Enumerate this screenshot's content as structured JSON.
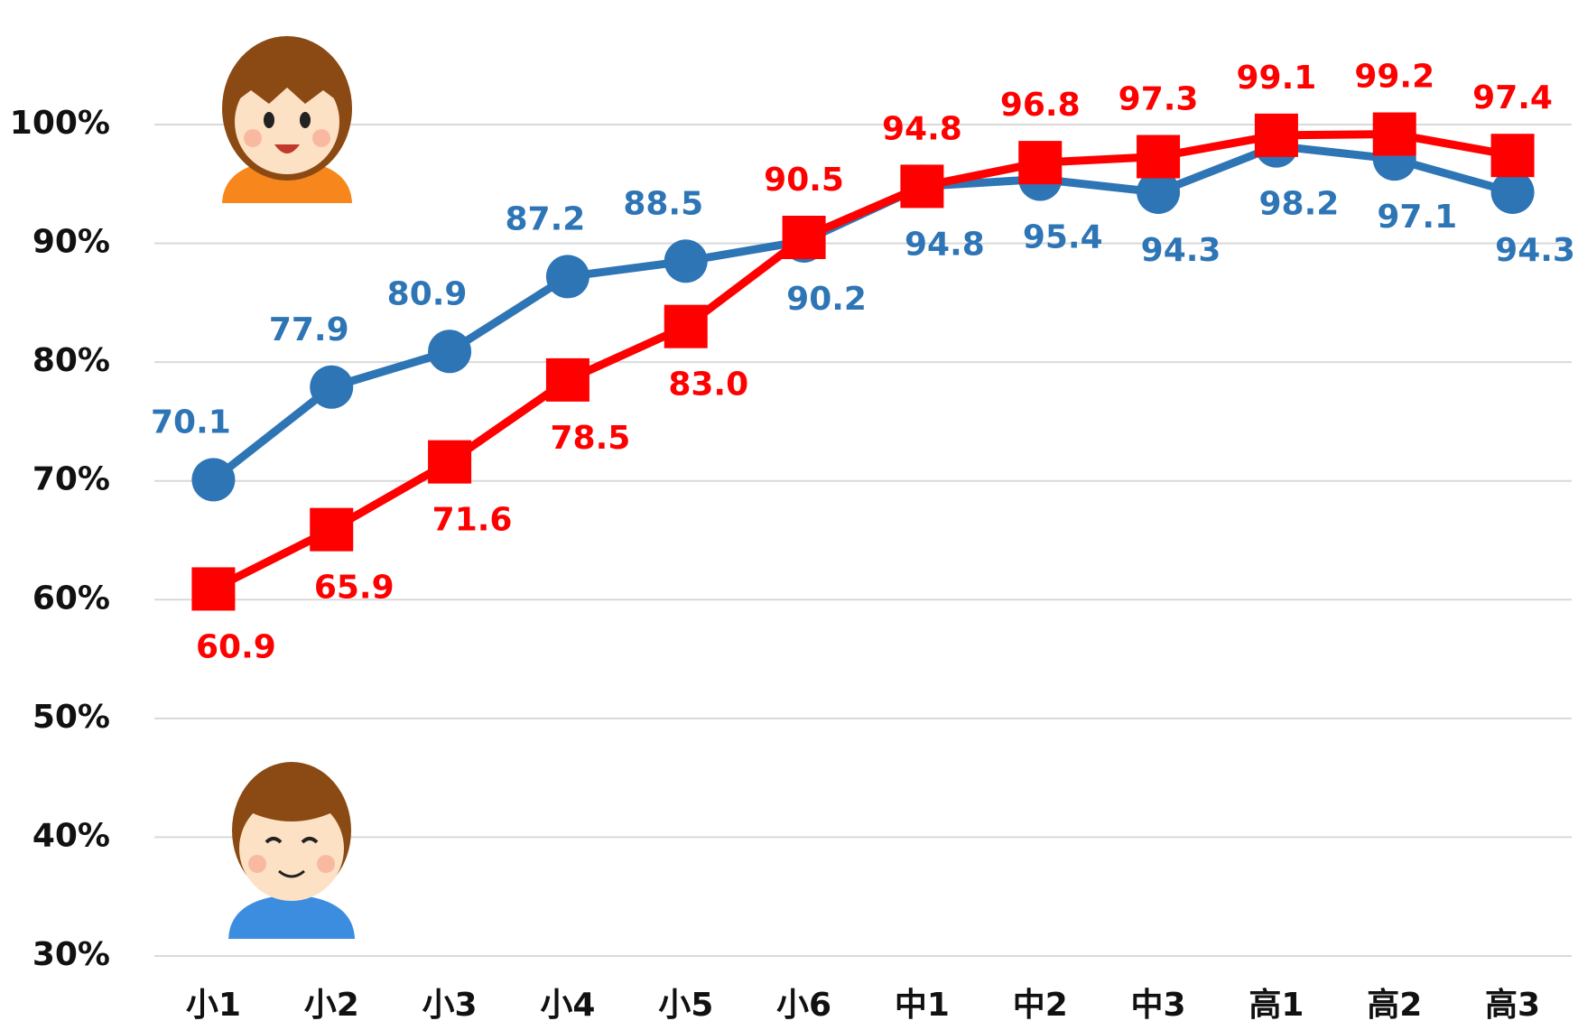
{
  "chart_data": {
    "type": "line",
    "categories": [
      "小1",
      "小2",
      "小3",
      "小4",
      "小5",
      "小6",
      "中1",
      "中2",
      "中3",
      "高1",
      "高2",
      "高3"
    ],
    "series": [
      {
        "color": "#2e75b6",
        "marker": "circle",
        "values": [
          70.1,
          77.9,
          80.9,
          87.2,
          88.5,
          90.2,
          94.8,
          95.4,
          94.3,
          98.2,
          97.1,
          94.3
        ]
      },
      {
        "color": "#ff0000",
        "marker": "square",
        "values": [
          60.9,
          65.9,
          71.6,
          78.5,
          83.0,
          90.5,
          94.8,
          96.8,
          97.3,
          99.1,
          99.2,
          97.4
        ],
        "value_labels": [
          "60.9",
          "65.9",
          "71.6",
          "78.5",
          "83.0",
          "90.5",
          "94.8",
          "96.8",
          "97.3",
          "99.1",
          "99.2",
          "97.4"
        ]
      }
    ],
    "ylim": [
      30,
      100
    ],
    "yticks": [
      {
        "value": 30,
        "label": "30%"
      },
      {
        "value": 40,
        "label": "40%"
      },
      {
        "value": 50,
        "label": "50%"
      },
      {
        "value": 60,
        "label": "60%"
      },
      {
        "value": 70,
        "label": "70%"
      },
      {
        "value": 80,
        "label": "80%"
      },
      {
        "value": 90,
        "label": "90%"
      },
      {
        "value": 100,
        "label": "100%"
      }
    ],
    "grid": true
  }
}
